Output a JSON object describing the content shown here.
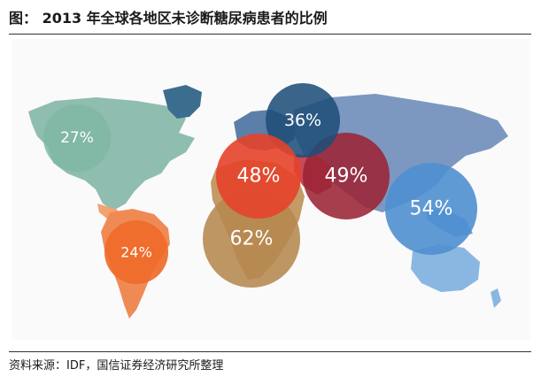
{
  "title": "图： 2013 年全球各地区未诊断糖尿病患者的比例",
  "source": "资料来源：IDF，国信证券经济研究所整理",
  "chart_data": {
    "type": "bubble-map",
    "unit": "%",
    "bubbles": [
      {
        "label": "27%",
        "value": 27,
        "color": "#7fb7a4"
      },
      {
        "label": "36%",
        "value": 36,
        "color": "#1f4e79"
      },
      {
        "label": "48%",
        "value": 48,
        "color": "#e5432a"
      },
      {
        "label": "49%",
        "value": 49,
        "color": "#9b2335"
      },
      {
        "label": "54%",
        "value": 54,
        "color": "#4f8fd0"
      },
      {
        "label": "62%",
        "value": 62,
        "color": "#b5874e"
      },
      {
        "label": "24%",
        "value": 24,
        "color": "#ef6a2a"
      }
    ]
  }
}
